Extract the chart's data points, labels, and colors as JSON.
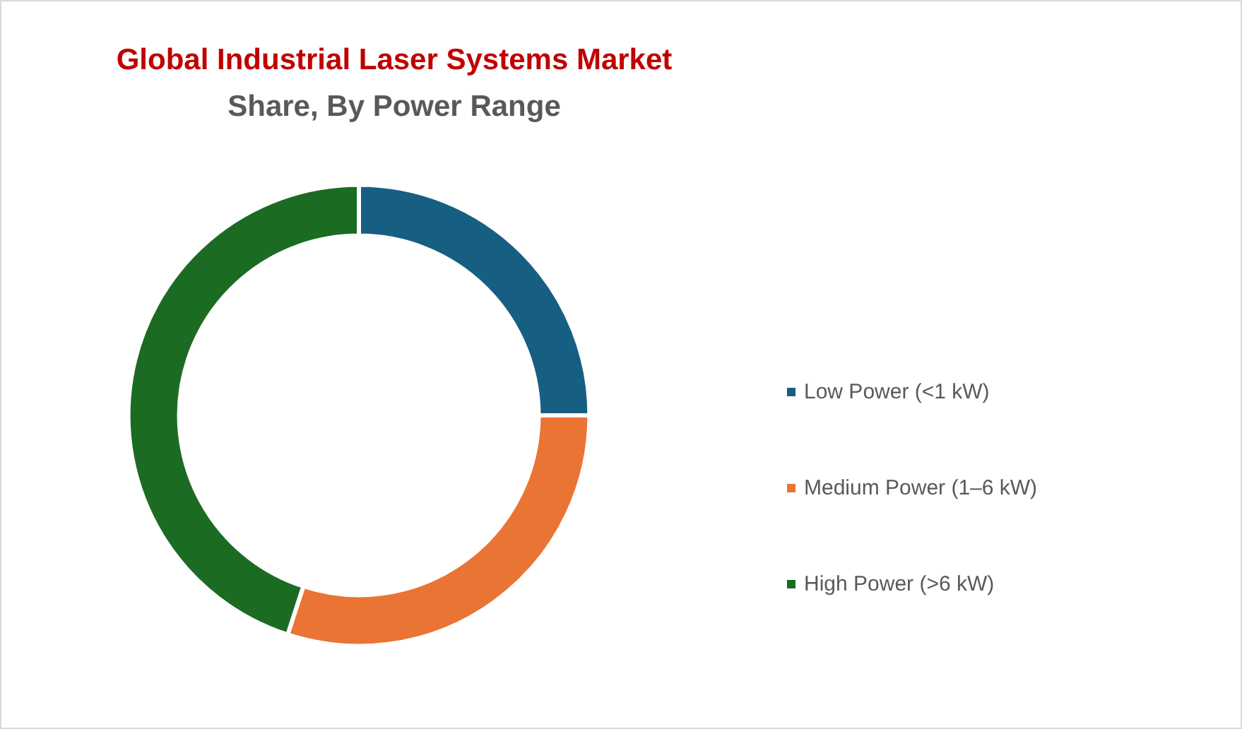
{
  "chart_data": {
    "type": "donut",
    "title": "Global Industrial Laser Systems Market",
    "subtitle": "Share, By Power Range",
    "categories": [
      "Low Power (<1 kW)",
      "Medium Power (1–6 kW)",
      "High Power (>6 kW)"
    ],
    "values": [
      25,
      30,
      45
    ],
    "colors": [
      "#175f82",
      "#e97434",
      "#1b6b23"
    ],
    "legend": "right"
  }
}
